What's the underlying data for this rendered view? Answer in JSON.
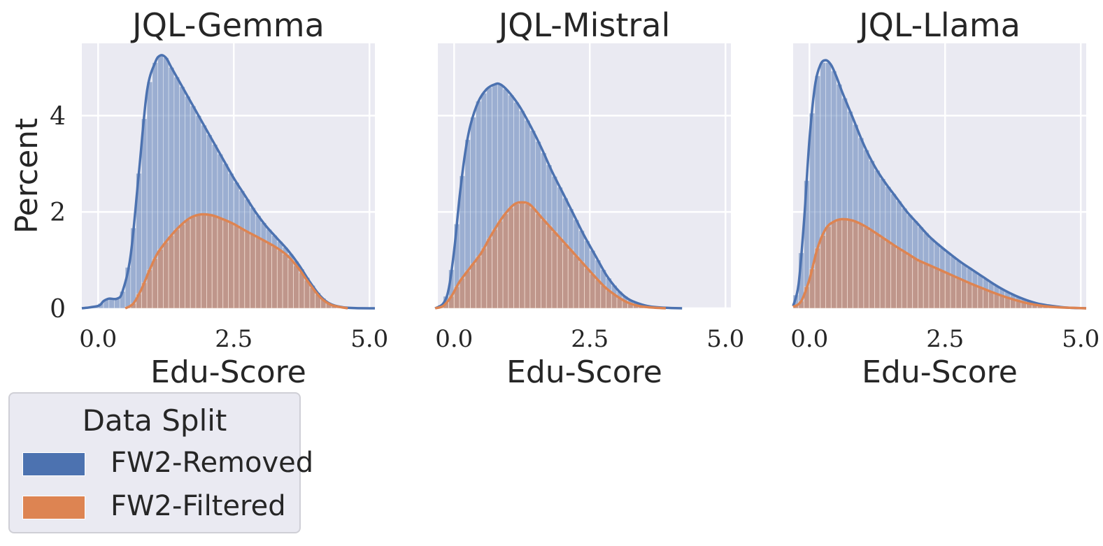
{
  "chart_data": [
    {
      "type": "histogram+kde",
      "title": "JQL-Gemma",
      "xlabel": "Edu-Score",
      "ylabel": "Percent",
      "xlim": [
        -0.3,
        5.1
      ],
      "ylim": [
        0,
        5.5
      ],
      "xticks": [
        "0.0",
        "2.5",
        "5.0"
      ],
      "yticks": [
        "0",
        "2",
        "4"
      ],
      "grid": true,
      "series": [
        {
          "name": "FW2-Removed",
          "kde_x": [
            -0.3,
            0.0,
            0.1,
            0.2,
            0.35,
            0.45,
            0.6,
            0.75,
            0.9,
            1.05,
            1.15,
            1.25,
            1.35,
            1.5,
            1.7,
            1.9,
            2.1,
            2.3,
            2.5,
            2.7,
            2.9,
            3.1,
            3.3,
            3.5,
            3.7,
            3.9,
            4.1,
            4.3,
            4.6,
            5.1
          ],
          "kde_y": [
            0,
            0.05,
            0.15,
            0.2,
            0.2,
            0.35,
            1.1,
            2.8,
            4.5,
            5.1,
            5.25,
            5.2,
            5.0,
            4.7,
            4.3,
            3.9,
            3.5,
            3.1,
            2.7,
            2.35,
            2.0,
            1.7,
            1.45,
            1.2,
            0.9,
            0.55,
            0.25,
            0.08,
            0.01,
            0
          ]
        },
        {
          "name": "FW2-Filtered",
          "kde_x": [
            0.5,
            0.65,
            0.8,
            0.95,
            1.1,
            1.3,
            1.5,
            1.7,
            1.9,
            2.1,
            2.3,
            2.5,
            2.7,
            2.9,
            3.1,
            3.3,
            3.5,
            3.7,
            3.9,
            4.1,
            4.3,
            4.6
          ],
          "kde_y": [
            0,
            0.1,
            0.4,
            0.8,
            1.15,
            1.45,
            1.7,
            1.88,
            1.95,
            1.93,
            1.85,
            1.75,
            1.62,
            1.5,
            1.38,
            1.25,
            1.08,
            0.82,
            0.5,
            0.22,
            0.07,
            0
          ]
        }
      ]
    },
    {
      "type": "histogram+kde",
      "title": "JQL-Mistral",
      "xlabel": "Edu-Score",
      "ylabel": "Percent",
      "xlim": [
        -0.3,
        5.1
      ],
      "ylim": [
        0,
        5.5
      ],
      "xticks": [
        "0.0",
        "2.5",
        "5.0"
      ],
      "yticks": [
        "0",
        "2",
        "4"
      ],
      "grid": true,
      "series": [
        {
          "name": "FW2-Removed",
          "kde_x": [
            -0.35,
            -0.2,
            -0.1,
            0.0,
            0.1,
            0.2,
            0.3,
            0.45,
            0.6,
            0.75,
            0.85,
            1.0,
            1.2,
            1.4,
            1.6,
            1.8,
            2.0,
            2.2,
            2.4,
            2.6,
            2.8,
            3.0,
            3.2,
            3.4,
            3.6,
            3.9,
            4.2
          ],
          "kde_y": [
            0,
            0.1,
            0.4,
            1.2,
            2.3,
            3.2,
            3.8,
            4.3,
            4.55,
            4.65,
            4.65,
            4.5,
            4.2,
            3.8,
            3.35,
            2.85,
            2.4,
            1.95,
            1.5,
            1.1,
            0.7,
            0.4,
            0.2,
            0.1,
            0.04,
            0.01,
            0
          ]
        },
        {
          "name": "FW2-Filtered",
          "kde_x": [
            -0.35,
            -0.2,
            -0.05,
            0.1,
            0.3,
            0.5,
            0.7,
            0.9,
            1.1,
            1.25,
            1.4,
            1.6,
            1.8,
            2.0,
            2.2,
            2.4,
            2.6,
            2.8,
            3.0,
            3.2,
            3.4,
            3.6,
            3.9
          ],
          "kde_y": [
            0,
            0.05,
            0.25,
            0.55,
            0.85,
            1.15,
            1.55,
            1.9,
            2.15,
            2.2,
            2.15,
            1.9,
            1.65,
            1.4,
            1.15,
            0.9,
            0.65,
            0.42,
            0.25,
            0.12,
            0.05,
            0.02,
            0
          ]
        }
      ]
    },
    {
      "type": "histogram+kde",
      "title": "JQL-Llama",
      "xlabel": "Edu-Score",
      "ylabel": "Percent",
      "xlim": [
        -0.3,
        5.1
      ],
      "ylim": [
        0,
        5.5
      ],
      "xticks": [
        "0.0",
        "2.5",
        "5.0"
      ],
      "yticks": [
        "0",
        "2",
        "4"
      ],
      "grid": true,
      "series": [
        {
          "name": "FW2-Removed",
          "kde_x": [
            -0.3,
            -0.2,
            -0.1,
            0.0,
            0.1,
            0.2,
            0.3,
            0.4,
            0.5,
            0.6,
            0.8,
            1.0,
            1.2,
            1.4,
            1.6,
            1.8,
            2.0,
            2.2,
            2.4,
            2.6,
            2.8,
            3.0,
            3.2,
            3.4,
            3.6,
            3.8,
            4.0,
            4.2,
            4.4,
            4.6,
            4.8,
            5.1
          ],
          "kde_y": [
            0.05,
            0.5,
            1.8,
            3.5,
            4.6,
            5.05,
            5.15,
            5.05,
            4.8,
            4.5,
            3.95,
            3.4,
            2.95,
            2.6,
            2.3,
            2.0,
            1.75,
            1.5,
            1.3,
            1.12,
            0.95,
            0.8,
            0.65,
            0.5,
            0.37,
            0.26,
            0.17,
            0.1,
            0.06,
            0.03,
            0.01,
            0
          ]
        },
        {
          "name": "FW2-Filtered",
          "kde_x": [
            -0.3,
            -0.15,
            0.0,
            0.15,
            0.3,
            0.45,
            0.6,
            0.8,
            1.0,
            1.2,
            1.4,
            1.6,
            1.8,
            2.0,
            2.2,
            2.4,
            2.6,
            2.8,
            3.0,
            3.2,
            3.4,
            3.6,
            3.8,
            4.0,
            4.3,
            4.6,
            5.1
          ],
          "kde_y": [
            0.03,
            0.15,
            0.6,
            1.25,
            1.65,
            1.8,
            1.85,
            1.82,
            1.72,
            1.58,
            1.43,
            1.28,
            1.14,
            1.0,
            0.9,
            0.8,
            0.7,
            0.6,
            0.5,
            0.41,
            0.32,
            0.24,
            0.17,
            0.11,
            0.05,
            0.02,
            0
          ]
        }
      ]
    }
  ],
  "legend": {
    "title": "Data Split",
    "items": [
      {
        "label": "FW2-Removed",
        "color": "#4c72b0"
      },
      {
        "label": "FW2-Filtered",
        "color": "#dd8452"
      }
    ]
  },
  "colors": {
    "removed_fill": "#4c72b0",
    "filtered_fill": "#dd8452",
    "plot_bg": "#eaeaf2",
    "grid": "#ffffff",
    "text": "#262626"
  }
}
